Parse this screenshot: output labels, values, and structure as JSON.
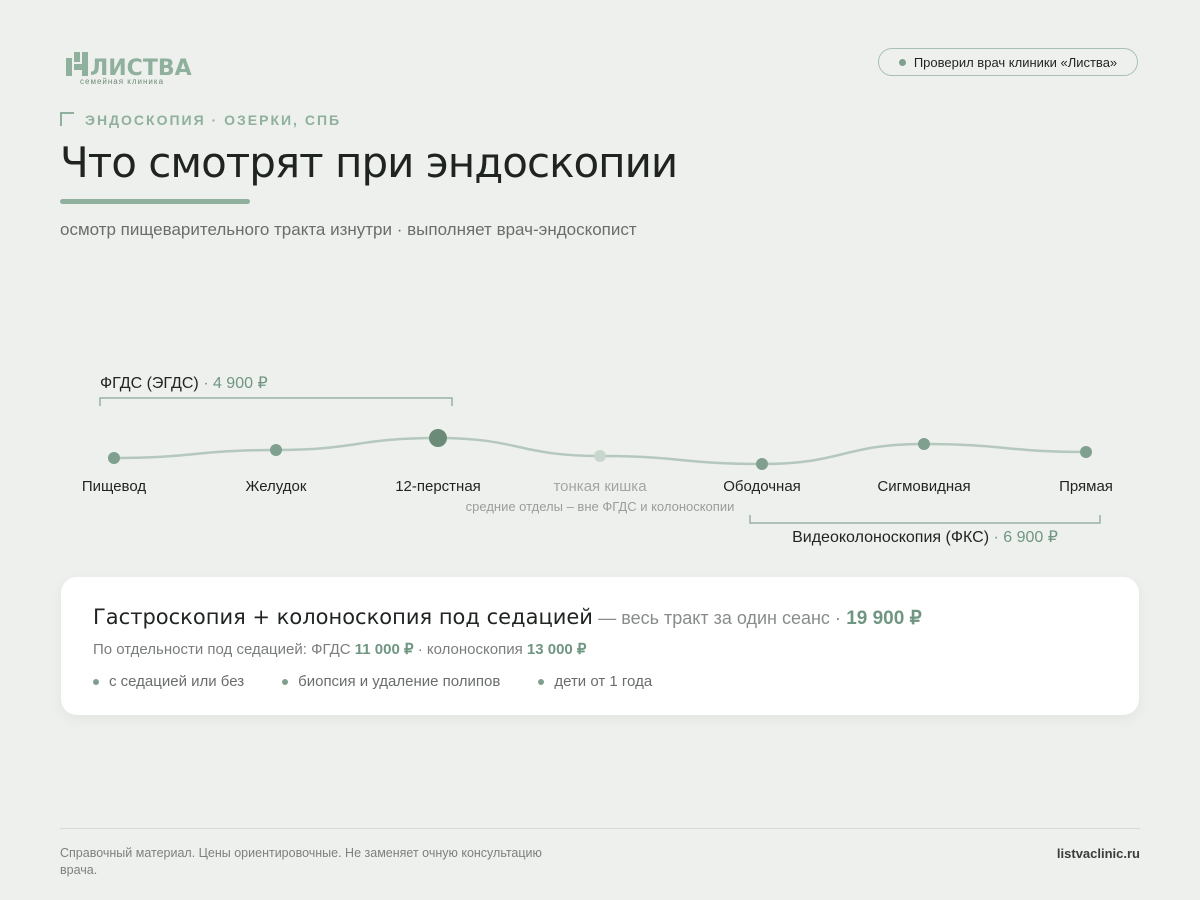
{
  "header": {
    "logo": {
      "name": "ЛИСТВА",
      "tagline": "семейная клиника"
    },
    "badge": "Проверил врач клиники «Листва»",
    "eyebrow": "ЭНДОСКОПИЯ · ОЗЕРКИ, СПБ",
    "title": "Что смотрят при эндоскопии",
    "subtitle": "осмотр пищеварительного тракта изнутри · выполняет врач-эндоскопист"
  },
  "diagram": {
    "upper_bracket": {
      "label": "ФГДС (ЭГДС)",
      "price": "· 4 900 ₽"
    },
    "nodes": [
      {
        "label": "Пищевод"
      },
      {
        "label": "Желудок"
      },
      {
        "label": "12-перстная"
      },
      {
        "label": "тонкая кишка"
      },
      {
        "label": "Ободочная"
      },
      {
        "label": "Сигмовидная"
      },
      {
        "label": "Прямая"
      }
    ],
    "note": "средние отделы – вне ФГДС и колоноскопии",
    "lower_bracket": {
      "label": "Видеоколоноскопия (ФКС)",
      "price": "· 6 900 ₽"
    }
  },
  "card": {
    "title": "Гастроскопия + колоноскопия под седацией",
    "title_suffix": "— весь тракт за один сеанс ·",
    "price": "19 900 ₽",
    "separate_prefix": "По отдельности под седацией: ФГДС",
    "separate_price_1": "11 000 ₽",
    "separate_mid": "· колоноскопия",
    "separate_price_2": "13 000 ₽",
    "bullets": [
      "с седацией или без",
      "биопсия и удаление полипов",
      "дети от 1 года"
    ]
  },
  "footer": {
    "disclaimer": "Справочный материал. Цены ориентировочные. Не заменяет очную консультацию врача.",
    "site": "listvaclinic.ru"
  }
}
